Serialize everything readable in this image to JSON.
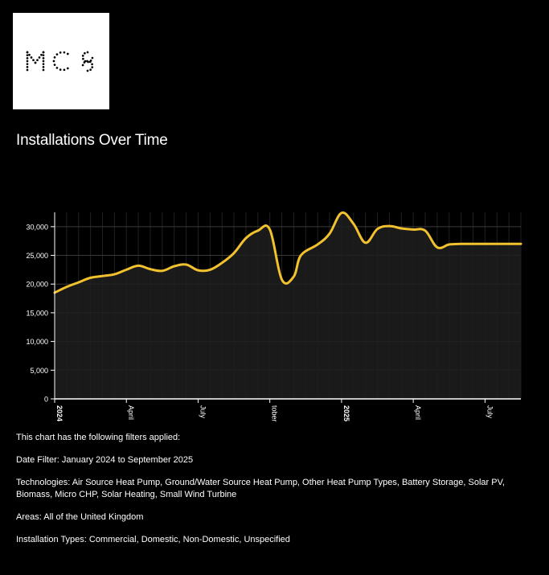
{
  "logo": {
    "text": "MCS"
  },
  "page": {
    "title": "Installations Over Time"
  },
  "filters": {
    "intro": "This chart has the following filters applied:",
    "date": "Date Filter: January 2024 to September 2025",
    "technologies": "Technologies: Air Source Heat Pump, Ground/Water Source Heat Pump, Other Heat Pump Types, Battery Storage, Solar PV, Biomass, Micro CHP, Solar Heating, Small Wind Turbine",
    "areas": "Areas: All of the United Kingdom",
    "installation_types": "Installation Types: Commercial, Domestic, Non-Domestic, Unspecified"
  },
  "colors": {
    "line": "#f2c12e",
    "area": "#1e1e1e",
    "grid": "#3a3a3a",
    "axis": "#ffffff",
    "background": "#000000"
  },
  "chart_data": {
    "type": "area",
    "title": "Installations Over Time",
    "xlabel": "",
    "ylabel": "",
    "ylim": [
      0,
      32500
    ],
    "grid": true,
    "y_ticks": [
      0,
      5000,
      10000,
      15000,
      20000,
      25000,
      30000
    ],
    "y_tick_labels": [
      "0",
      "5,000",
      "10,000",
      "15,000",
      "20,000",
      "25,000",
      "30,000"
    ],
    "x_ticks": [
      {
        "label": "2024",
        "month": 0,
        "bold": true
      },
      {
        "label": "April",
        "month": 3,
        "bold": false
      },
      {
        "label": "July",
        "month": 6,
        "bold": false
      },
      {
        "label": "tober",
        "month": 9,
        "bold": false
      },
      {
        "label": "2025",
        "month": 12,
        "bold": true
      },
      {
        "label": "April",
        "month": 15,
        "bold": false
      },
      {
        "label": "July",
        "month": 18,
        "bold": false
      }
    ],
    "series": [
      {
        "x": [
          0,
          0.5,
          1,
          1.5,
          2,
          2.5,
          3,
          3.5,
          4,
          4.5,
          5,
          5.5,
          6,
          6.5,
          7,
          7.5,
          8,
          8.5,
          9,
          9.5,
          10,
          10.3,
          11,
          11.5,
          12,
          12.5,
          13,
          13.5,
          14,
          14.5,
          15,
          15.5,
          16,
          16.5,
          17,
          17.5,
          18,
          18.5,
          19,
          19.5
        ],
        "y": [
          18500,
          19500,
          20300,
          21100,
          21400,
          21700,
          22500,
          23200,
          22600,
          22300,
          23100,
          23400,
          22400,
          22500,
          23700,
          25400,
          28000,
          29300,
          29500,
          20800,
          21300,
          25000,
          26900,
          28800,
          32400,
          30500,
          27200,
          29600,
          30100,
          29700,
          29500,
          29300,
          26400,
          26900,
          27000,
          27000,
          27000,
          27000,
          27000,
          27000
        ]
      }
    ]
  }
}
